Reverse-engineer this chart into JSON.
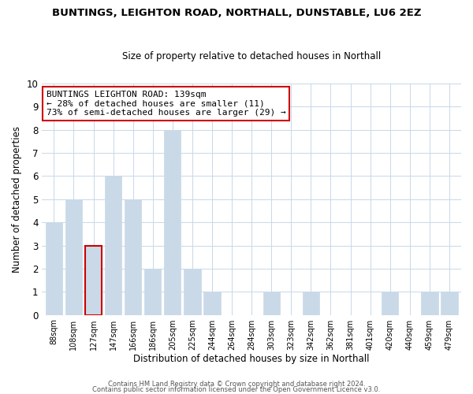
{
  "title": "BUNTINGS, LEIGHTON ROAD, NORTHALL, DUNSTABLE, LU6 2EZ",
  "subtitle": "Size of property relative to detached houses in Northall",
  "xlabel": "Distribution of detached houses by size in Northall",
  "ylabel": "Number of detached properties",
  "bar_labels": [
    "88sqm",
    "108sqm",
    "127sqm",
    "147sqm",
    "166sqm",
    "186sqm",
    "205sqm",
    "225sqm",
    "244sqm",
    "264sqm",
    "284sqm",
    "303sqm",
    "323sqm",
    "342sqm",
    "362sqm",
    "381sqm",
    "401sqm",
    "420sqm",
    "440sqm",
    "459sqm",
    "479sqm"
  ],
  "bar_values": [
    4,
    5,
    3,
    6,
    5,
    2,
    8,
    2,
    1,
    0,
    0,
    1,
    0,
    1,
    0,
    0,
    0,
    1,
    0,
    1,
    1
  ],
  "bar_color": "#c9d9e8",
  "highlight_bar_index": 2,
  "highlight_edge_color": "#cc0000",
  "annotation_title": "BUNTINGS LEIGHTON ROAD: 139sqm",
  "annotation_line1": "← 28% of detached houses are smaller (11)",
  "annotation_line2": "73% of semi-detached houses are larger (29) →",
  "annotation_box_edge": "#cc0000",
  "ylim": [
    0,
    10
  ],
  "yticks": [
    0,
    1,
    2,
    3,
    4,
    5,
    6,
    7,
    8,
    9,
    10
  ],
  "footer1": "Contains HM Land Registry data © Crown copyright and database right 2024.",
  "footer2": "Contains public sector information licensed under the Open Government Licence v3.0."
}
